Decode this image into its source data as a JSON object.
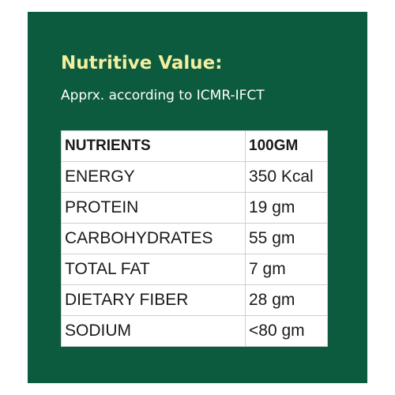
{
  "header": {
    "title": "Nutritive Value:",
    "subtitle": "Apprx. according to ICMR-IFCT"
  },
  "table": {
    "columns": [
      "NUTRIENTS",
      "100GM"
    ],
    "rows": [
      [
        "ENERGY",
        "350 Kcal"
      ],
      [
        "PROTEIN",
        "19 gm"
      ],
      [
        "CARBOHYDRATES",
        "55 gm"
      ],
      [
        "TOTAL FAT",
        "7 gm"
      ],
      [
        "DIETARY FIBER",
        "28 gm"
      ],
      [
        "SODIUM",
        "<80 gm"
      ]
    ]
  }
}
